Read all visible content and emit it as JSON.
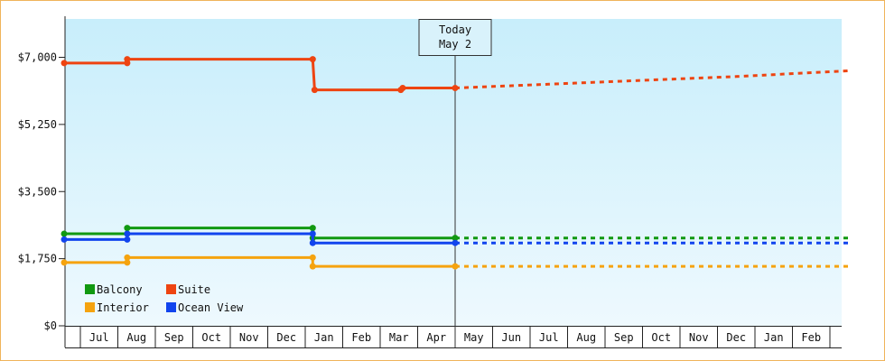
{
  "chart_data": {
    "type": "line",
    "title": "",
    "xlabel": "",
    "ylabel": "",
    "ylim": [
      0,
      8000
    ],
    "yticks": [
      0,
      1750,
      3500,
      5250,
      7000
    ],
    "ytick_labels": [
      "$0",
      "$1,750",
      "$3,500",
      "$5,250",
      "$7,000"
    ],
    "months": [
      "Jul",
      "Aug",
      "Sep",
      "Oct",
      "Nov",
      "Dec",
      "Jan",
      "Feb",
      "Mar",
      "Apr",
      "May",
      "Jun",
      "Jul",
      "Aug",
      "Sep",
      "Oct",
      "Nov",
      "Dec",
      "Jan",
      "Feb"
    ],
    "grid": false,
    "legend_position": "bottom-left",
    "background": {
      "top": "#c8eefb",
      "bottom": "#eef9fe"
    },
    "today": {
      "line1": "Today",
      "line2": "May 2",
      "x": 10
    },
    "series": [
      {
        "name": "Balcony",
        "color": "#119911",
        "points": [
          [
            -0.5,
            2400
          ],
          [
            1.25,
            2400
          ],
          [
            1.25,
            2550
          ],
          [
            6.2,
            2550
          ],
          [
            6.2,
            2290
          ],
          [
            10,
            2290
          ]
        ],
        "markers": [
          [
            -0.5,
            2400
          ],
          [
            1.25,
            2400
          ],
          [
            1.25,
            2550
          ],
          [
            6.2,
            2550
          ],
          [
            6.2,
            2290
          ],
          [
            10,
            2290
          ]
        ],
        "forecast": [
          [
            10,
            2290
          ],
          [
            20.5,
            2290
          ]
        ]
      },
      {
        "name": "Suite",
        "color": "#ee4411",
        "points": [
          [
            -0.5,
            6850
          ],
          [
            1.25,
            6850
          ],
          [
            1.25,
            6950
          ],
          [
            6.2,
            6950
          ],
          [
            6.25,
            6150
          ],
          [
            8.55,
            6150
          ],
          [
            8.6,
            6200
          ],
          [
            10,
            6200
          ]
        ],
        "markers": [
          [
            -0.5,
            6850
          ],
          [
            1.25,
            6850
          ],
          [
            1.25,
            6950
          ],
          [
            6.2,
            6950
          ],
          [
            6.25,
            6150
          ],
          [
            8.55,
            6150
          ],
          [
            8.6,
            6200
          ],
          [
            10,
            6200
          ]
        ],
        "forecast": [
          [
            10,
            6200
          ],
          [
            12.5,
            6300
          ],
          [
            15,
            6400
          ],
          [
            17.5,
            6500
          ],
          [
            20.5,
            6650
          ]
        ]
      },
      {
        "name": "Interior",
        "color": "#f5a30f",
        "points": [
          [
            -0.5,
            1650
          ],
          [
            1.25,
            1650
          ],
          [
            1.25,
            1780
          ],
          [
            6.2,
            1780
          ],
          [
            6.2,
            1550
          ],
          [
            10,
            1550
          ]
        ],
        "markers": [
          [
            -0.5,
            1650
          ],
          [
            1.25,
            1650
          ],
          [
            1.25,
            1780
          ],
          [
            6.2,
            1780
          ],
          [
            6.2,
            1550
          ],
          [
            10,
            1550
          ]
        ],
        "forecast": [
          [
            10,
            1550
          ],
          [
            20.5,
            1550
          ]
        ]
      },
      {
        "name": "Ocean View",
        "color": "#1144ee",
        "points": [
          [
            -0.5,
            2250
          ],
          [
            1.25,
            2250
          ],
          [
            1.25,
            2400
          ],
          [
            6.2,
            2400
          ],
          [
            6.2,
            2160
          ],
          [
            10,
            2160
          ]
        ],
        "markers": [
          [
            -0.5,
            2250
          ],
          [
            1.25,
            2250
          ],
          [
            1.25,
            2400
          ],
          [
            6.2,
            2400
          ],
          [
            6.2,
            2160
          ],
          [
            10,
            2160
          ]
        ],
        "forecast": [
          [
            10,
            2160
          ],
          [
            20.5,
            2160
          ]
        ]
      }
    ]
  }
}
